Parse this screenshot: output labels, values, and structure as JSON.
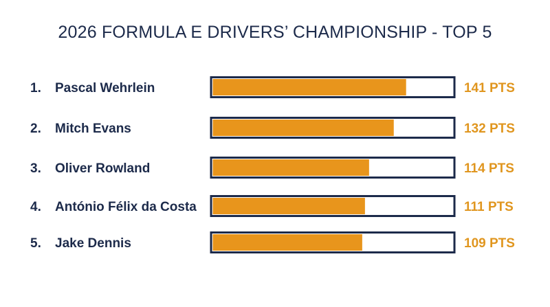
{
  "colors": {
    "text": "#1c2a4a",
    "bar_fill": "#e8951c",
    "bar_outline": "#1c2a4a",
    "points_text": "#e0961f",
    "background": "#ffffff"
  },
  "chart_data": {
    "type": "bar",
    "orientation": "horizontal",
    "title": "2026 FORMULA E DRIVERS’ CHAMPIONSHIP - TOP 5",
    "xlim": [
      0,
      175
    ],
    "grid": false,
    "legend": "none",
    "categories": [
      "Pascal Wehrlein",
      "Mitch Evans",
      "Oliver Rowland",
      "António Félix da Costa",
      "Jake Dennis"
    ],
    "ranks": [
      "1.",
      "2.",
      "3.",
      "4.",
      "5."
    ],
    "values": [
      141,
      132,
      114,
      111,
      109
    ],
    "value_labels": [
      "141 PTS",
      "132 PTS",
      "114 PTS",
      "111 PTS",
      "109 PTS"
    ]
  }
}
